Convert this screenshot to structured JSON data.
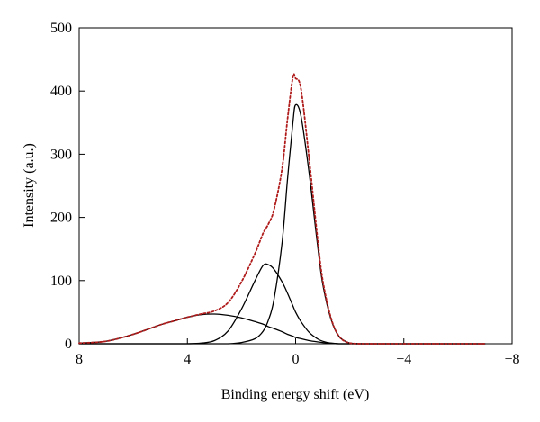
{
  "chart_data": {
    "type": "line",
    "title": "",
    "xlabel": "Binding energy shift (eV)",
    "ylabel": "Intensity (a.u.)",
    "xlim": [
      8,
      -8
    ],
    "ylim": [
      0,
      500
    ],
    "x_reversed": true,
    "x_ticks": [
      8,
      4,
      0,
      -4,
      -8
    ],
    "x_tick_labels": [
      "8",
      "4",
      "0",
      "−4",
      "−8"
    ],
    "y_ticks": [
      0,
      100,
      200,
      300,
      400,
      500
    ],
    "y_tick_labels": [
      "0",
      "100",
      "200",
      "300",
      "400",
      "500"
    ],
    "grid": false,
    "legend": "none",
    "x": [
      8.0,
      7.0,
      6.0,
      5.0,
      4.5,
      4.0,
      3.5,
      3.0,
      2.5,
      2.0,
      1.5,
      1.2,
      1.0,
      0.8,
      0.5,
      0.3,
      0.1,
      0.0,
      -0.2,
      -0.5,
      -0.8,
      -1.0,
      -1.3,
      -1.6,
      -2.0,
      -2.5,
      -3.0,
      -4.0,
      -5.0,
      -6.0,
      -7.0
    ],
    "series": [
      {
        "color": "#000000",
        "style": "solid",
        "values": [
          1,
          4,
          15,
          30,
          36,
          42,
          46,
          47,
          45,
          41,
          35,
          31,
          27,
          24,
          19,
          15,
          12,
          10,
          8,
          5,
          3,
          2,
          1,
          0,
          0,
          0,
          0,
          0,
          0,
          0,
          0
        ]
      },
      {
        "color": "#000000",
        "style": "solid",
        "values": [
          0,
          0,
          0,
          0,
          0,
          0,
          1,
          5,
          20,
          55,
          100,
          124,
          125,
          118,
          98,
          80,
          60,
          50,
          35,
          18,
          8,
          4,
          1,
          0,
          0,
          0,
          0,
          0,
          0,
          0,
          0
        ]
      },
      {
        "color": "#000000",
        "style": "solid",
        "values": [
          0,
          0,
          0,
          0,
          0,
          0,
          0,
          0,
          0,
          2,
          8,
          20,
          38,
          70,
          160,
          260,
          350,
          378,
          360,
          270,
          160,
          95,
          40,
          12,
          1,
          0,
          0,
          0,
          0,
          0,
          0
        ]
      },
      {
        "color": "#b01c1c",
        "style": "dotted",
        "values": [
          1,
          4,
          15,
          30,
          36,
          42,
          47,
          52,
          65,
          98,
          143,
          175,
          190,
          212,
          277,
          355,
          422,
          420,
          403,
          293,
          171,
          101,
          42,
          12,
          1,
          0,
          0,
          0,
          0,
          0,
          0
        ]
      }
    ]
  }
}
